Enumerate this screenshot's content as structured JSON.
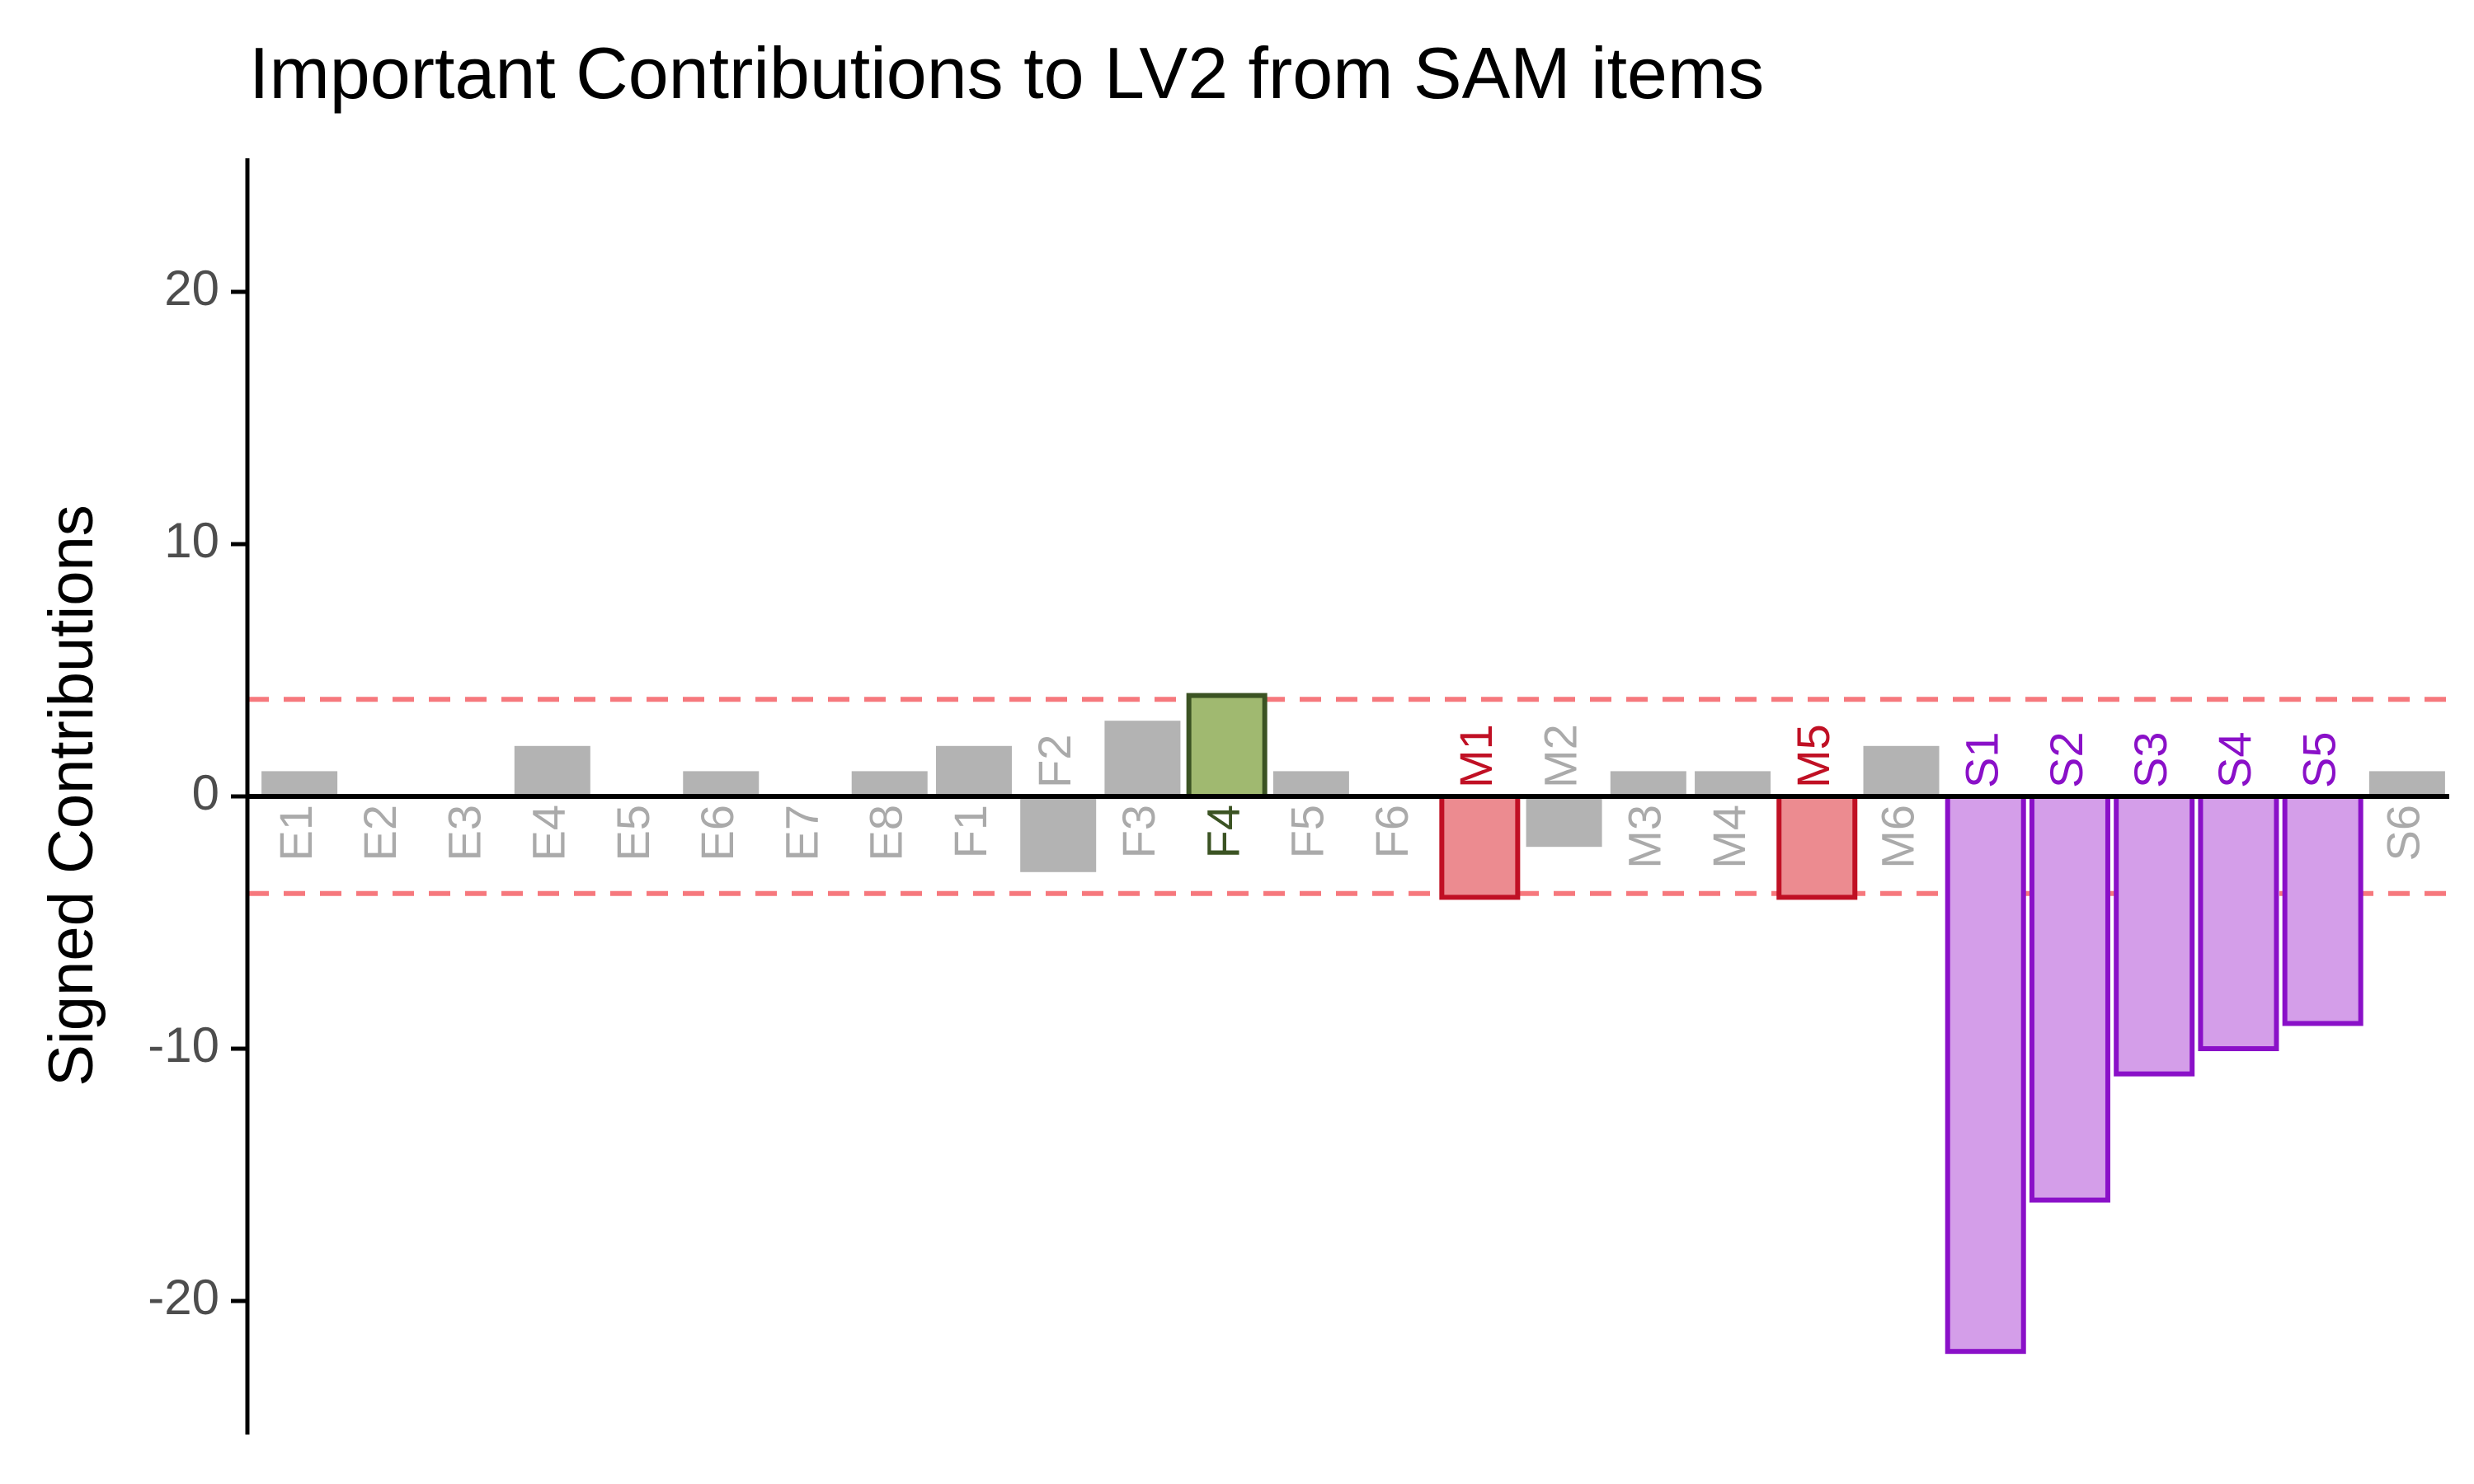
{
  "chart_data": {
    "type": "bar",
    "title": "Important Contributions to LV2 from SAM items",
    "xlabel": "",
    "ylabel": "Signed Contributions",
    "ylim": [
      -25.3,
      25.3
    ],
    "yticks": [
      -20,
      -10,
      0,
      10,
      20
    ],
    "ytick_labels": [
      "-20",
      "-10",
      "0",
      "10",
      "20"
    ],
    "threshold": 3.85,
    "grid": false,
    "legend": "none",
    "categories": [
      "E1",
      "E2",
      "E3",
      "E4",
      "E5",
      "E6",
      "E7",
      "E8",
      "F1",
      "F2",
      "F3",
      "F4",
      "F5",
      "F6",
      "M1",
      "M2",
      "M3",
      "M4",
      "M5",
      "M6",
      "S1",
      "S2",
      "S3",
      "S4",
      "S5",
      "S6"
    ],
    "values": [
      1,
      0,
      0,
      2,
      0,
      1,
      0,
      1,
      2,
      -3,
      3,
      4,
      1,
      0,
      -4,
      -2,
      1,
      1,
      -4,
      2,
      -22,
      -16,
      -11,
      -10,
      -9,
      1
    ],
    "groups": [
      "E",
      "E",
      "E",
      "E",
      "E",
      "E",
      "E",
      "E",
      "F",
      "F",
      "F",
      "F",
      "F",
      "F",
      "M",
      "M",
      "M",
      "M",
      "M",
      "M",
      "S",
      "S",
      "S",
      "S",
      "S",
      "S"
    ],
    "important": [
      false,
      false,
      false,
      false,
      false,
      false,
      false,
      false,
      false,
      false,
      false,
      true,
      false,
      false,
      true,
      false,
      false,
      false,
      true,
      false,
      true,
      true,
      true,
      true,
      true,
      false
    ]
  },
  "colors": {
    "non_important_fill": "#b3b3b3",
    "non_important_label": "#aaaaaa",
    "F_fill": "#a0b970",
    "F_stroke": "#3b5323",
    "M_fill": "#ec8b90",
    "M_stroke": "#c01024",
    "S_fill": "#d49ee9",
    "S_stroke": "#8a10c8",
    "threshold_line": "#f6787d",
    "axis": "#000000",
    "tick_label": "#4d4d4d"
  }
}
